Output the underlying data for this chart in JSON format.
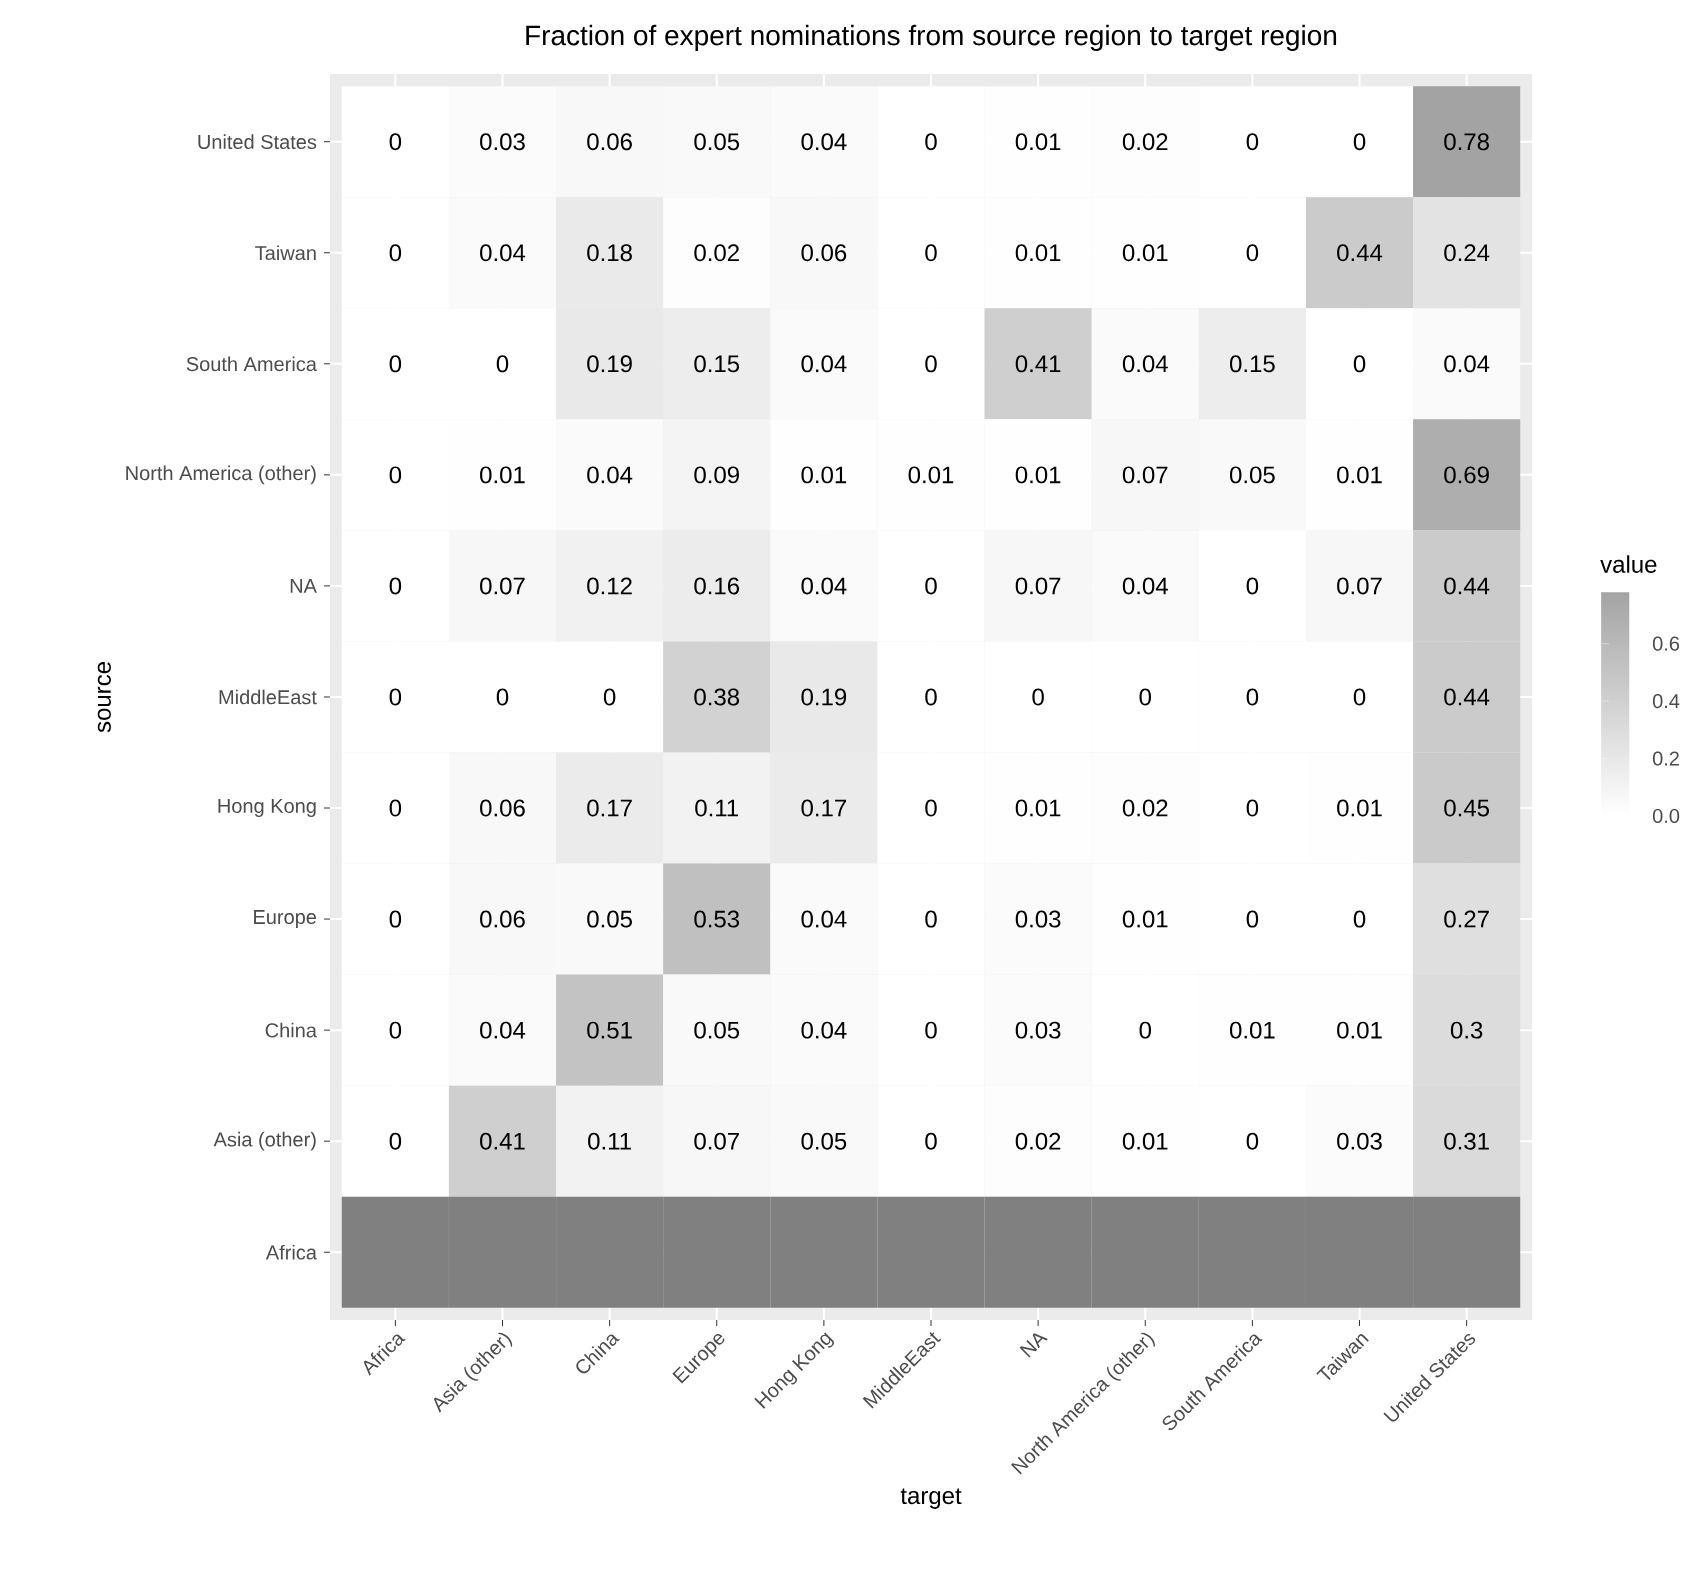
{
  "chart_data": {
    "type": "heatmap",
    "title": "Fraction of expert nominations from source region to target region",
    "xlabel": "target",
    "ylabel": "source",
    "legend_title": "value",
    "categories": [
      "Africa",
      "Asia (other)",
      "China",
      "Europe",
      "Hong Kong",
      "MiddleEast",
      "NA",
      "North America (other)",
      "South America",
      "Taiwan",
      "United States"
    ],
    "y_categories": [
      "United States",
      "Taiwan",
      "South America",
      "North America (other)",
      "NA",
      "MiddleEast",
      "Hong Kong",
      "Europe",
      "China",
      "Asia (other)",
      "Africa"
    ],
    "cells": [
      [
        0,
        0.03,
        0.06,
        0.05,
        0.04,
        0,
        0.01,
        0.02,
        0,
        0,
        0.78
      ],
      [
        0,
        0.04,
        0.18,
        0.02,
        0.06,
        0,
        0.01,
        0.01,
        0,
        0.44,
        0.24
      ],
      [
        0,
        0,
        0.19,
        0.15,
        0.04,
        0,
        0.41,
        0.04,
        0.15,
        0,
        0.04
      ],
      [
        0,
        0.01,
        0.04,
        0.09,
        0.01,
        0.01,
        0.01,
        0.07,
        0.05,
        0.01,
        0.69
      ],
      [
        0,
        0.07,
        0.12,
        0.16,
        0.04,
        0,
        0.07,
        0.04,
        0,
        0.07,
        0.44
      ],
      [
        0,
        0,
        0,
        0.38,
        0.19,
        0,
        0,
        0,
        0,
        0,
        0.44
      ],
      [
        0,
        0.06,
        0.17,
        0.11,
        0.17,
        0,
        0.01,
        0.02,
        0,
        0.01,
        0.45
      ],
      [
        0,
        0.06,
        0.05,
        0.53,
        0.04,
        0,
        0.03,
        0.01,
        0,
        0,
        0.27
      ],
      [
        0,
        0.04,
        0.51,
        0.05,
        0.04,
        0,
        0.03,
        0,
        0.01,
        0.01,
        0.3
      ],
      [
        0,
        0.41,
        0.11,
        0.07,
        0.05,
        0,
        0.02,
        0.01,
        0,
        0.03,
        0.31
      ],
      [
        null,
        null,
        null,
        null,
        null,
        null,
        null,
        null,
        null,
        null,
        null
      ]
    ],
    "colors": [
      "#ffffff",
      "#a3a3a3"
    ],
    "clim": [
      0,
      0.78
    ],
    "cticks": [
      {
        "value": 0,
        "label": "0.0"
      },
      0.2,
      0.4,
      0.6
    ],
    "data_labels": true,
    "grid": true
  }
}
